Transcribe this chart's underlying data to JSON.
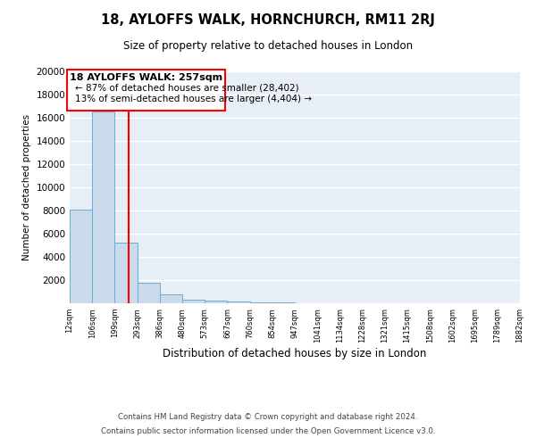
{
  "title": "18, AYLOFFS WALK, HORNCHURCH, RM11 2RJ",
  "subtitle": "Size of property relative to detached houses in London",
  "xlabel": "Distribution of detached houses by size in London",
  "ylabel": "Number of detached properties",
  "bar_values": [
    8050,
    16500,
    5200,
    1800,
    800,
    300,
    200,
    150,
    100,
    80,
    0,
    0,
    0,
    0,
    0,
    0,
    0,
    0,
    0,
    0
  ],
  "bin_labels": [
    "12sqm",
    "106sqm",
    "199sqm",
    "293sqm",
    "386sqm",
    "480sqm",
    "573sqm",
    "667sqm",
    "760sqm",
    "854sqm",
    "947sqm",
    "1041sqm",
    "1134sqm",
    "1228sqm",
    "1321sqm",
    "1415sqm",
    "1508sqm",
    "1602sqm",
    "1695sqm",
    "1789sqm",
    "1882sqm"
  ],
  "bar_color": "#c9daea",
  "bar_edge_color": "#6aadd5",
  "background_color": "#e8eef6",
  "grid_color": "#ffffff",
  "annotation_title": "18 AYLOFFS WALK: 257sqm",
  "annotation_line1": "← 87% of detached houses are smaller (28,402)",
  "annotation_line2": "13% of semi-detached houses are larger (4,404) →",
  "ylim": [
    0,
    20000
  ],
  "yticks": [
    0,
    2000,
    4000,
    6000,
    8000,
    10000,
    12000,
    14000,
    16000,
    18000,
    20000
  ],
  "footer_line1": "Contains HM Land Registry data © Crown copyright and database right 2024.",
  "footer_line2": "Contains public sector information licensed under the Open Government Licence v3.0."
}
